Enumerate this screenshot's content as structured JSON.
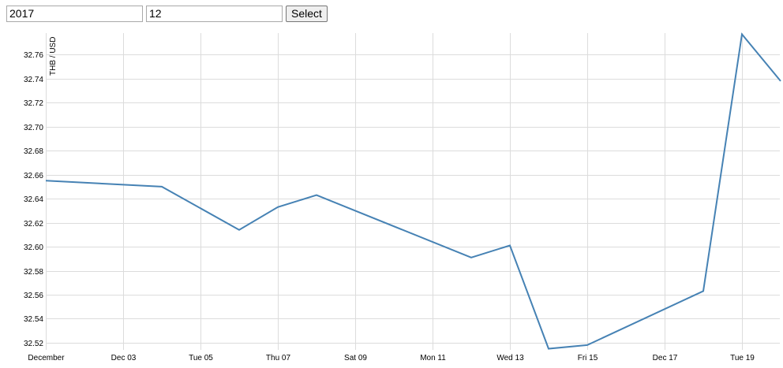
{
  "form": {
    "year_value": "2017",
    "month_value": "12",
    "select_label": "Select"
  },
  "chart_data": {
    "type": "line",
    "ylabel": "THB / USD",
    "xlabel": "",
    "title": "",
    "x_tick_labels": [
      "December",
      "Dec 03",
      "Tue 05",
      "Thu 07",
      "Sat 09",
      "Mon 11",
      "Wed 13",
      "Fri 15",
      "Dec 17",
      "Tue 19"
    ],
    "x_tick_dates": [
      "2017-12-01",
      "2017-12-03",
      "2017-12-05",
      "2017-12-07",
      "2017-12-09",
      "2017-12-11",
      "2017-12-13",
      "2017-12-15",
      "2017-12-17",
      "2017-12-19"
    ],
    "y_ticks": [
      32.52,
      32.54,
      32.56,
      32.58,
      32.6,
      32.62,
      32.64,
      32.66,
      32.68,
      32.7,
      32.72,
      32.74,
      32.76
    ],
    "xlim": [
      "2017-12-01",
      "2017-12-21"
    ],
    "ylim": [
      32.514,
      32.778
    ],
    "grid": true,
    "points": [
      {
        "x": "2017-12-01",
        "y": 32.655
      },
      {
        "x": "2017-12-04",
        "y": 32.65
      },
      {
        "x": "2017-12-06",
        "y": 32.614
      },
      {
        "x": "2017-12-07",
        "y": 32.633
      },
      {
        "x": "2017-12-08",
        "y": 32.643
      },
      {
        "x": "2017-12-12",
        "y": 32.591
      },
      {
        "x": "2017-12-13",
        "y": 32.601
      },
      {
        "x": "2017-12-14",
        "y": 32.515
      },
      {
        "x": "2017-12-15",
        "y": 32.518
      },
      {
        "x": "2017-12-18",
        "y": 32.563
      },
      {
        "x": "2017-12-19",
        "y": 32.777
      },
      {
        "x": "2017-12-20",
        "y": 32.738
      }
    ],
    "line_color": "#4682b4",
    "grid_color": "#dcdcdc"
  }
}
